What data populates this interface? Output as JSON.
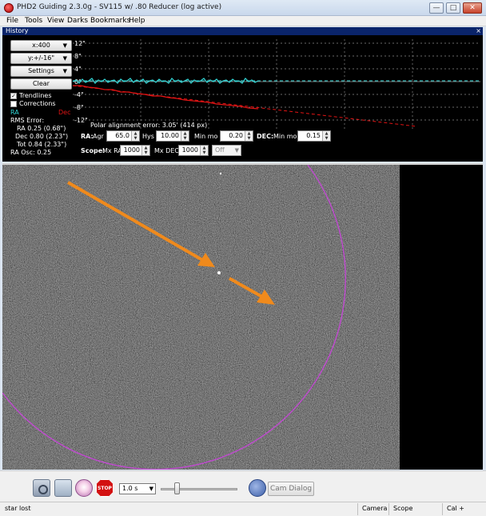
{
  "window": {
    "title": "PHD2 Guiding 2.3.0g - SV115 w/ .80 Reducer (log active)",
    "min_label": "—",
    "max_label": "□",
    "close_label": "✕"
  },
  "menu": [
    "File",
    "Tools",
    "View",
    "Darks",
    "Bookmarks",
    "Help"
  ],
  "history": {
    "title": "History",
    "close_label": "×",
    "x_scale_label": "x:400",
    "y_scale_label": "y:+/-16\"",
    "settings_label": "Settings",
    "clear_label": "Clear",
    "trendlines_label": "Trendlines",
    "trendlines_checked": true,
    "corrections_label": "Corrections",
    "corrections_checked": false,
    "legend_ra": "RA",
    "legend_dec": "Dec",
    "rms_title": "RMS Error:",
    "rms_ra": "RA 0.25 (0.68\")",
    "rms_dec": "Dec 0.80 (2.23\")",
    "rms_tot": "Tot 0.84 (2.33\")",
    "ra_osc": "RA Osc: 0.25",
    "polar_alignment": "Polar alignment error: 3.05' (414 px)",
    "y_ticks": [
      "12\"",
      "8\"",
      "4\"",
      "0\"",
      "-4\"",
      "-8\"",
      "-12\""
    ],
    "colors": {
      "ra": "#33d6d6",
      "dec": "#e01414",
      "grid": "#8a8a8a"
    }
  },
  "controls": {
    "ra_label": "RA:",
    "agr_label": "Agr",
    "agr_value": "65.0",
    "hys_label": "Hys",
    "hys_value": "10.00",
    "ra_minmo_label": "Min mo",
    "ra_minmo_value": "0.20",
    "dec_label": "DEC:",
    "dec_minmo_label": "Min mo",
    "dec_minmo_value": "0.15",
    "scope_label": "Scope:",
    "mxra_label": "Mx RA",
    "mxra_value": "1000",
    "mxdec_label": "Mx DEC",
    "mxdec_value": "1000",
    "dec_mode_value": "Off"
  },
  "toolbar": {
    "stop_label": "STOP",
    "exposure_value": "1.0 s",
    "cam_dialog_label": "Cam Dialog"
  },
  "status": {
    "message": "star lost",
    "camera": "Camera",
    "scope": "Scope",
    "cal": "Cal +"
  }
}
